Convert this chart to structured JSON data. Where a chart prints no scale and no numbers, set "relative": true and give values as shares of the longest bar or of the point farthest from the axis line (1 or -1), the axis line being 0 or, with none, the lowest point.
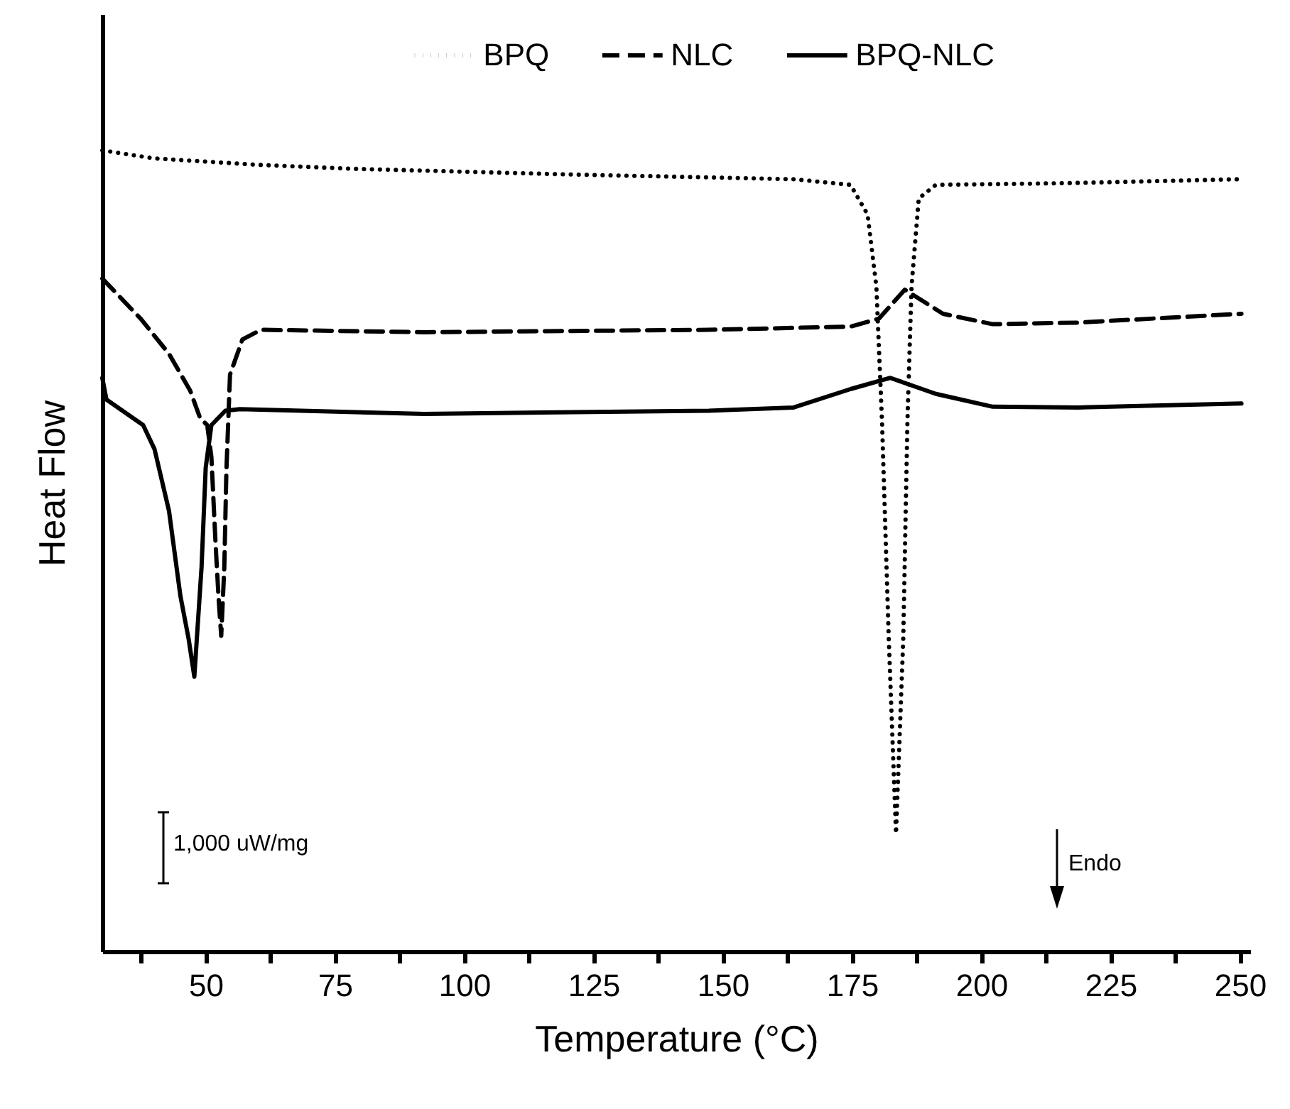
{
  "chart_data": {
    "type": "line",
    "xlabel": "Temperature (°C)",
    "ylabel": "Heat Flow",
    "relative": true,
    "legend": "top",
    "xlim": [
      30,
      252
    ],
    "xticks": [
      {
        "value": 37.5,
        "label": null
      },
      50,
      {
        "value": 62.5,
        "label": null
      },
      75,
      {
        "value": 87.5,
        "label": null
      },
      100,
      {
        "value": 112.5,
        "label": null
      },
      125,
      {
        "value": 137.5,
        "label": null
      },
      150,
      {
        "value": 162.5,
        "label": null
      },
      175,
      {
        "value": 187.5,
        "label": null
      },
      200,
      {
        "value": 212.5,
        "label": null
      },
      225,
      {
        "value": 237.5,
        "label": null
      },
      250
    ],
    "annotations": [
      "1,000 uW/mg",
      "Endo"
    ],
    "series": [
      {
        "name": "BPQ",
        "color": "#000000",
        "line_style": "dotted",
        "x": [
          30,
          40,
          60,
          78.6,
          120,
          163.7,
          174.7,
          178,
          179.7,
          180.8,
          182.1,
          183.5,
          184.9,
          185.7,
          186.5,
          187.9,
          191.2,
          215.9,
          250.3
        ],
        "values": [
          1.0,
          0.99,
          0.982,
          0.977,
          0.97,
          0.964,
          0.957,
          0.92,
          0.83,
          0.66,
          0.39,
          0.147,
          0.39,
          0.66,
          0.83,
          0.94,
          0.957,
          0.959,
          0.964
        ]
      },
      {
        "name": "NLC",
        "color": "#000000",
        "line_style": "dashed",
        "x": [
          30,
          37.4,
          42.9,
          47,
          48.9,
          50.3,
          51.1,
          51.9,
          52.5,
          53,
          53.6,
          54,
          54.7,
          57.1,
          60.7,
          92.3,
          147.3,
          174.7,
          180.2,
          185.2,
          192.6,
          202.2,
          218.7,
          250.3
        ],
        "values": [
          0.84,
          0.79,
          0.746,
          0.7,
          0.666,
          0.657,
          0.617,
          0.51,
          0.44,
          0.394,
          0.48,
          0.6,
          0.72,
          0.764,
          0.776,
          0.773,
          0.776,
          0.78,
          0.79,
          0.826,
          0.796,
          0.783,
          0.785,
          0.796
        ]
      },
      {
        "name": "BPQ-NLC",
        "color": "#000000",
        "line_style": "solid",
        "x": [
          30,
          30.8,
          37.9,
          40.1,
          42.9,
          45.1,
          46.7,
          47.8,
          49.2,
          50,
          51.1,
          53.8,
          56.6,
          92.3,
          147.3,
          163.7,
          174.7,
          182.4,
          191.2,
          202.2,
          218.7,
          250.3
        ],
        "values": [
          0.716,
          0.689,
          0.657,
          0.627,
          0.55,
          0.444,
          0.39,
          0.343,
          0.48,
          0.604,
          0.657,
          0.675,
          0.677,
          0.671,
          0.675,
          0.679,
          0.702,
          0.716,
          0.696,
          0.68,
          0.679,
          0.684
        ]
      }
    ]
  }
}
